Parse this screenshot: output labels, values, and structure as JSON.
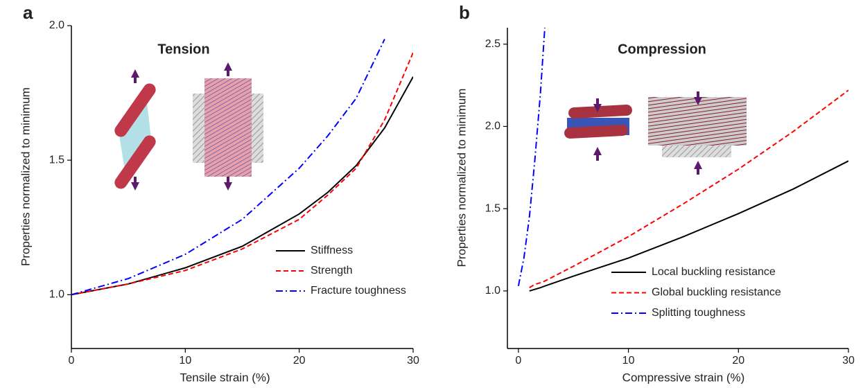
{
  "chart_data": [
    {
      "type": "line",
      "panel": "a",
      "annotation": "Tension",
      "x_label": "Tensile strain (%)",
      "y_label": "Properties normalized to minimum",
      "x": [
        0,
        5,
        10,
        15,
        20,
        22.5,
        25,
        27.5,
        30
      ],
      "series": [
        {
          "name": "Stiffness",
          "color": "#000000",
          "dash": "solid",
          "values": [
            1.0,
            1.04,
            1.1,
            1.18,
            1.3,
            1.38,
            1.48,
            1.62,
            1.81
          ]
        },
        {
          "name": "Strength",
          "color": "#ff0000",
          "dash": "dashed",
          "values": [
            1.0,
            1.04,
            1.09,
            1.17,
            1.28,
            1.37,
            1.47,
            1.65,
            1.9
          ]
        },
        {
          "name": "Fracture toughness",
          "color": "#0000ff",
          "dash": "dashdot",
          "values": [
            1.0,
            1.06,
            1.15,
            1.28,
            1.47,
            1.59,
            1.73,
            1.95,
            null
          ]
        }
      ],
      "xlim": [
        0,
        30
      ],
      "xticks": [
        0,
        10,
        20,
        30
      ],
      "ylim": [
        0.8,
        2.0
      ],
      "yticks": [
        {
          "value": 1.0,
          "label": "1.0"
        },
        {
          "value": 1.5,
          "label": "1.5"
        },
        {
          "value": 2.0,
          "label": "2.0"
        }
      ],
      "legend": "lower right"
    },
    {
      "type": "line",
      "panel": "b",
      "annotation": "Compression",
      "x_label": "Compressive strain (%)",
      "y_label": "Properties normalized to minimum",
      "x": [
        0,
        0.5,
        1,
        1.5,
        2,
        2.4,
        5,
        10,
        15,
        20,
        25,
        30
      ],
      "series": [
        {
          "name": "Local buckling resistance",
          "color": "#000000",
          "dash": "solid",
          "values": [
            null,
            null,
            1.0,
            1.01,
            1.02,
            1.03,
            1.09,
            1.2,
            1.33,
            1.47,
            1.62,
            1.79
          ]
        },
        {
          "name": "Global buckling resistance",
          "color": "#ff0000",
          "dash": "dashed",
          "values": [
            null,
            null,
            1.02,
            1.04,
            1.05,
            1.06,
            1.15,
            1.33,
            1.53,
            1.74,
            1.97,
            2.22
          ]
        },
        {
          "name": "Splitting toughness",
          "color": "#0000ff",
          "dash": "dashdot",
          "values": [
            1.03,
            1.2,
            1.45,
            1.8,
            2.2,
            2.6,
            null,
            null,
            null,
            null,
            null,
            null
          ]
        }
      ],
      "xlim": [
        -1,
        30
      ],
      "xticks": [
        0,
        10,
        20,
        30
      ],
      "ylim": [
        0.65,
        2.6
      ],
      "yticks": [
        {
          "value": 1.0,
          "label": "1.0"
        },
        {
          "value": 1.5,
          "label": "1.5"
        },
        {
          "value": 2.0,
          "label": "2.0"
        },
        {
          "value": 2.5,
          "label": "2.5"
        }
      ],
      "legend": "lower right"
    }
  ]
}
